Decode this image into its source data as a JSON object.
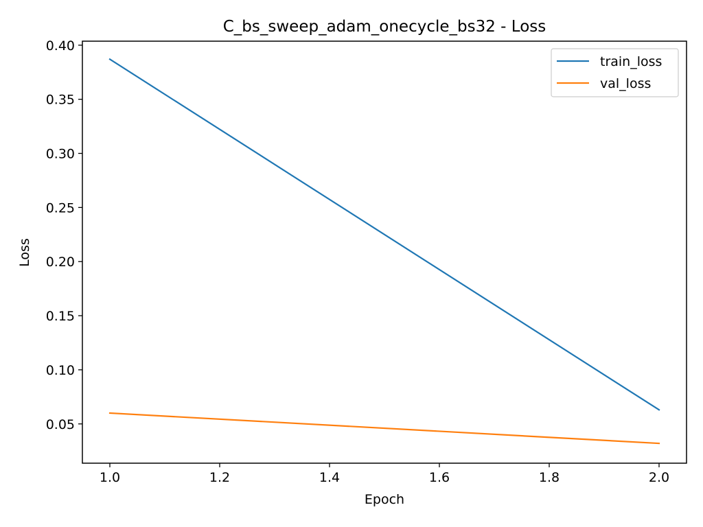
{
  "chart_data": {
    "type": "line",
    "title": "C_bs_sweep_adam_onecycle_bs32 - Loss",
    "xlabel": "Epoch",
    "ylabel": "Loss",
    "x": [
      1.0,
      2.0
    ],
    "xlim": [
      0.95,
      2.05
    ],
    "ylim": [
      0.0137,
      0.4037
    ],
    "xticks": [
      1.0,
      1.2,
      1.4,
      1.6,
      1.8,
      2.0
    ],
    "xtick_labels": [
      "1.0",
      "1.2",
      "1.4",
      "1.6",
      "1.8",
      "2.0"
    ],
    "yticks": [
      0.05,
      0.1,
      0.15,
      0.2,
      0.25,
      0.3,
      0.35,
      0.4
    ],
    "ytick_labels": [
      "0.05",
      "0.10",
      "0.15",
      "0.20",
      "0.25",
      "0.30",
      "0.35",
      "0.40"
    ],
    "series": [
      {
        "name": "train_loss",
        "values": [
          0.387,
          0.063
        ],
        "color": "#1f77b4"
      },
      {
        "name": "val_loss",
        "values": [
          0.06,
          0.032
        ],
        "color": "#ff7f0e"
      }
    ],
    "legend_position": "upper right",
    "grid": false
  }
}
